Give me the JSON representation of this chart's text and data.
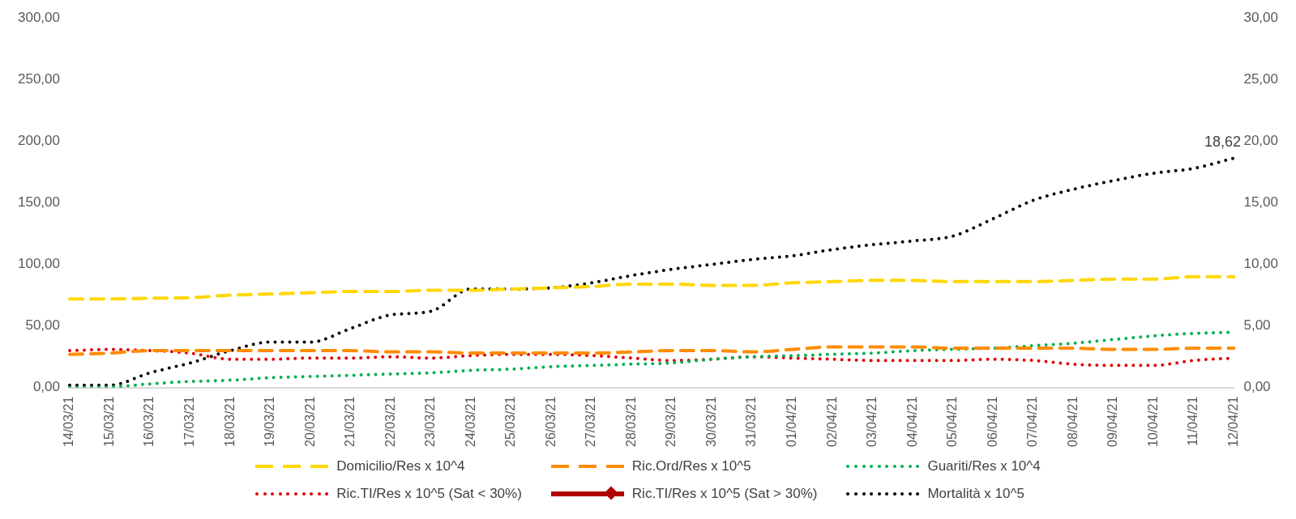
{
  "chart_data": {
    "type": "line",
    "categories": [
      "14/03/21",
      "15/03/21",
      "16/03/21",
      "17/03/21",
      "18/03/21",
      "19/03/21",
      "20/03/21",
      "21/03/21",
      "22/03/21",
      "23/03/21",
      "24/03/21",
      "25/03/21",
      "26/03/21",
      "27/03/21",
      "28/03/21",
      "29/03/21",
      "30/03/21",
      "31/03/21",
      "01/04/21",
      "02/04/21",
      "03/04/21",
      "04/04/21",
      "05/04/21",
      "06/04/21",
      "07/04/21",
      "08/04/21",
      "09/04/21",
      "10/04/21",
      "11/04/21",
      "12/04/21"
    ],
    "ylim": [
      0,
      300
    ],
    "yticks": [
      {
        "value": 0,
        "label": "0,00"
      },
      {
        "value": 50,
        "label": "50,00"
      },
      {
        "value": 100,
        "label": "100,00"
      },
      {
        "value": 150,
        "label": "150,00"
      },
      {
        "value": 200,
        "label": "200,00"
      },
      {
        "value": 250,
        "label": "250,00"
      },
      {
        "value": 300,
        "label": "300,00"
      }
    ],
    "y2lim": [
      0,
      30
    ],
    "y2ticks": [
      {
        "value": 0,
        "label": "0,00"
      },
      {
        "value": 5,
        "label": "5,00"
      },
      {
        "value": 10,
        "label": "10,00"
      },
      {
        "value": 15,
        "label": "15,00"
      },
      {
        "value": 20,
        "label": "20,00"
      },
      {
        "value": 25,
        "label": "25,00"
      },
      {
        "value": 30,
        "label": "30,00"
      }
    ],
    "grid": false,
    "legend": "bottom",
    "marker": "none",
    "series": [
      {
        "name": "Domicilio/Res x 10^4",
        "color": "#ffd700",
        "line_style": "dashed",
        "values": [
          72,
          72,
          72.5,
          73,
          75,
          76,
          77,
          78,
          78,
          79,
          79,
          80,
          81,
          82,
          84,
          84,
          83,
          83,
          85,
          86,
          87,
          87,
          86,
          86,
          86,
          87,
          88,
          88,
          90,
          90
        ]
      },
      {
        "name": "Ric.Ord/Res x 10^5",
        "color": "#ff8c00",
        "line_style": "dashed",
        "values": [
          27,
          28,
          30,
          30,
          30,
          30,
          30,
          30,
          29,
          29,
          28,
          28,
          28,
          28,
          29,
          30,
          30,
          29,
          31,
          33,
          33,
          33,
          32,
          32,
          32,
          32,
          31,
          31,
          32,
          32
        ]
      },
      {
        "name": "Guariti/Res x 10^4",
        "color": "#00b050",
        "line_style": "dotted",
        "values": [
          0,
          0.5,
          3,
          5,
          6,
          8,
          9,
          10,
          11,
          12,
          14,
          15,
          17,
          18,
          19,
          20,
          23,
          25,
          26,
          27,
          28,
          30,
          31,
          32,
          34,
          36,
          39,
          42,
          44,
          45
        ]
      },
      {
        "name": "Ric.TI/Res x 10^5 (Sat < 30%)",
        "color": "#e00000",
        "line_style": "dotted",
        "values": [
          30,
          31,
          30,
          28,
          23,
          23,
          24,
          24,
          25,
          24,
          26,
          27,
          27,
          26,
          24,
          22,
          23,
          25,
          24,
          23,
          22,
          22,
          22,
          23,
          22,
          19,
          18,
          18,
          22,
          24
        ]
      },
      {
        "name": "Ric.TI/Res x 10^5 (Sat > 30%)",
        "color": "#b00000",
        "line_style": "solid",
        "marker": "diamond",
        "values": [
          null,
          null,
          null,
          null,
          null,
          null,
          null,
          null,
          null,
          null,
          null,
          null,
          null,
          null,
          null,
          null,
          null,
          null,
          null,
          null,
          null,
          null,
          null,
          null,
          null,
          null,
          null,
          null,
          null,
          null
        ]
      },
      {
        "name": "Mortalità x 10^5",
        "color": "#000000",
        "line_style": "dotted",
        "axis": "y2",
        "values": [
          0.2,
          0.2,
          1.2,
          2.0,
          3.0,
          3.7,
          3.7,
          4.8,
          5.9,
          6.2,
          8.0,
          8.0,
          8.1,
          8.5,
          9.1,
          9.6,
          10.0,
          10.4,
          10.7,
          11.2,
          11.6,
          11.9,
          12.3,
          13.7,
          15.2,
          16.1,
          16.8,
          17.4,
          17.8,
          18.62
        ],
        "value_labels": [
          null,
          null,
          null,
          null,
          null,
          null,
          null,
          null,
          null,
          null,
          null,
          null,
          null,
          null,
          null,
          null,
          null,
          null,
          null,
          null,
          null,
          null,
          null,
          null,
          null,
          null,
          null,
          null,
          null,
          "18,62"
        ]
      }
    ]
  }
}
